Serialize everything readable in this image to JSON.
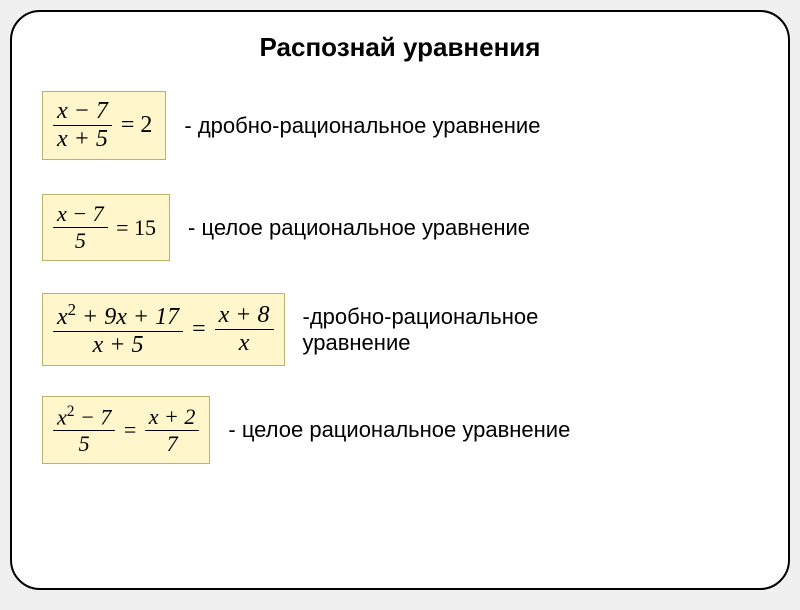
{
  "title": "Распознай уравнения",
  "box_bg": "#fff6cc",
  "box_border": "#c0b070",
  "slide_bg": "#ffffff",
  "slide_border": "#000000",
  "eq1": {
    "frac_top": "x − 7",
    "frac_bot": "x + 5",
    "rhs": "= 2",
    "desc": "- дробно-рациональное уравнение"
  },
  "eq2": {
    "frac_top": "x − 7",
    "frac_bot": "5",
    "rhs": "= 15",
    "desc": "- целое рациональное уравнение"
  },
  "eq3": {
    "lfrac_top_a": "x",
    "lfrac_top_b": " + 9x + 17",
    "sup": "2",
    "lfrac_bot": "x + 5",
    "eq": "=",
    "rfrac_top": "x + 8",
    "rfrac_bot": "x",
    "desc_l1": "-дробно-рациональное",
    "desc_l2": " уравнение"
  },
  "eq4": {
    "lfrac_top_a": "x",
    "lfrac_top_b": " − 7",
    "sup": "2",
    "lfrac_bot": "5",
    "eq": "=",
    "rfrac_top": "x + 2",
    "rfrac_bot": "7",
    "desc": "- целое рациональное уравнение"
  }
}
